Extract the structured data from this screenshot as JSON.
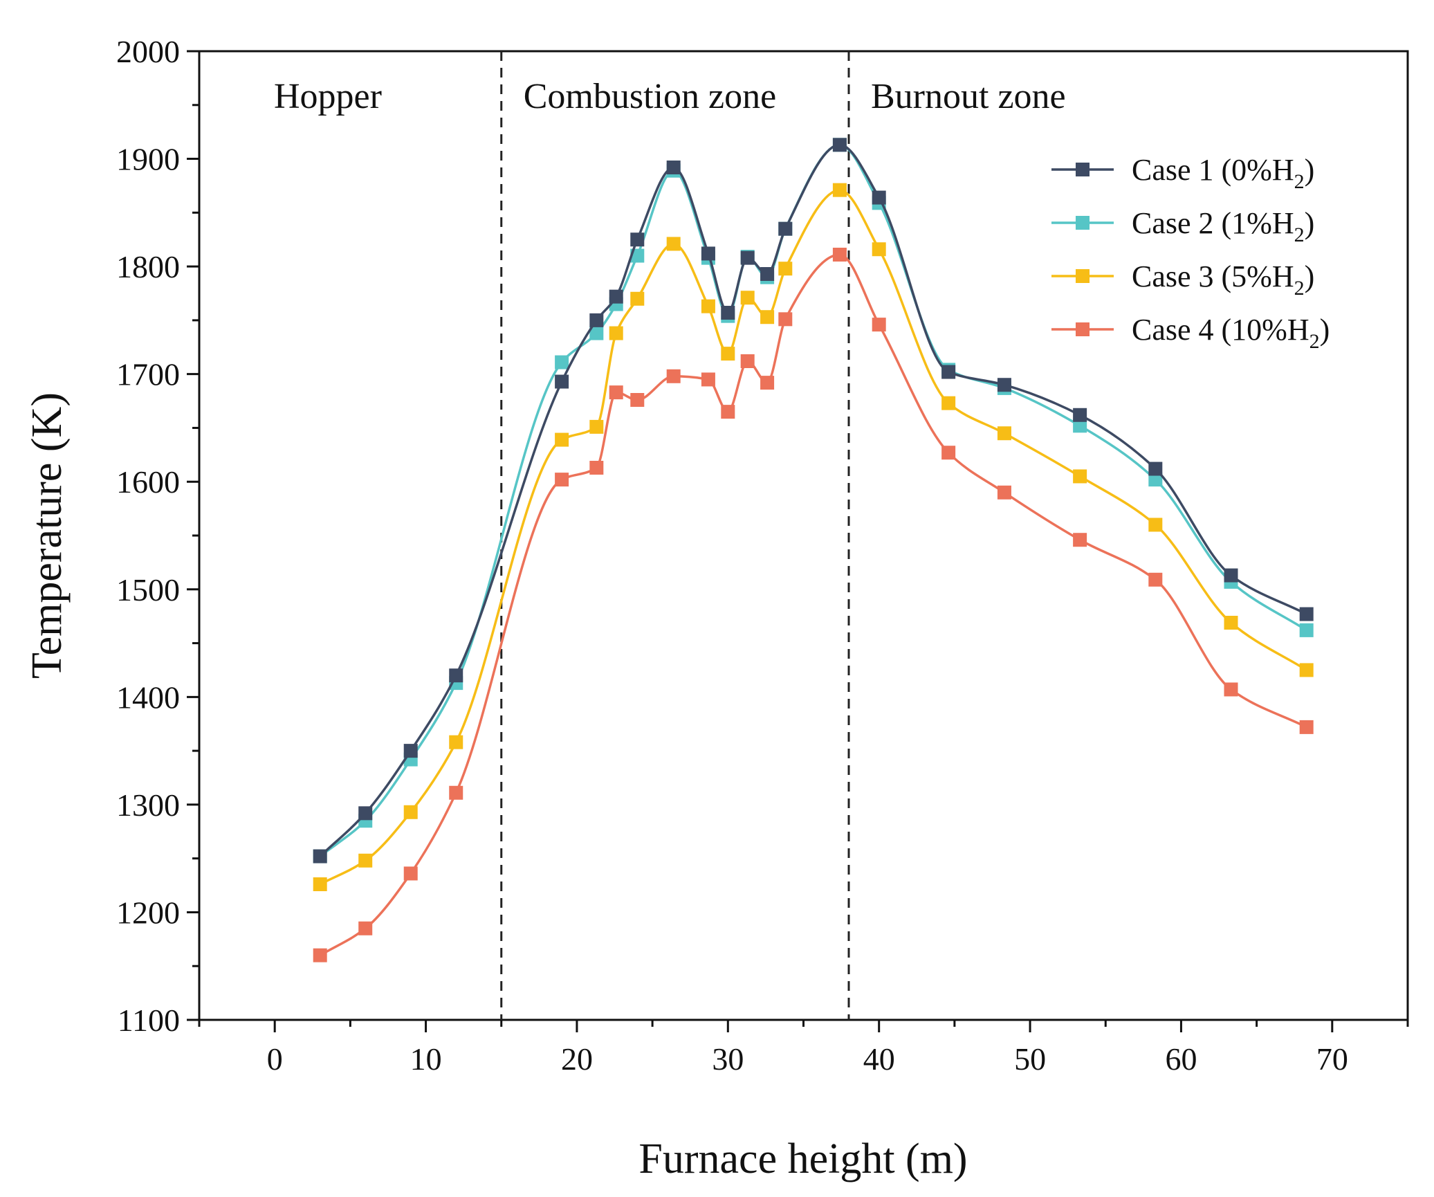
{
  "chart_data": {
    "type": "line",
    "title": "",
    "xlabel": "Furnace height (m)",
    "ylabel": "Temperature (K)",
    "xlim": [
      -5,
      75
    ],
    "ylim": [
      1100,
      2000
    ],
    "xticks": [
      0,
      10,
      20,
      30,
      40,
      50,
      60,
      70
    ],
    "yticks": [
      1100,
      1200,
      1300,
      1400,
      1500,
      1600,
      1700,
      1800,
      1900,
      2000
    ],
    "x": [
      3,
      6,
      9,
      12,
      19,
      21.3,
      22.6,
      24,
      26.4,
      28.7,
      30,
      31.3,
      32.6,
      33.8,
      37.4,
      40,
      44.6,
      48.3,
      53.3,
      58.3,
      63.3,
      68.3
    ],
    "series": [
      {
        "name": "Case 1 (0%H",
        "sub": "2",
        "suffix": ")",
        "color": "#3d4a63",
        "values": [
          1252,
          1292,
          1350,
          1420,
          1693,
          1750,
          1772,
          1825,
          1892,
          1812,
          1757,
          1808,
          1793,
          1835,
          1913,
          1864,
          1702,
          1690,
          1662,
          1612,
          1513,
          1477
        ]
      },
      {
        "name": "Case 2 (1%H",
        "sub": "2",
        "suffix": ")",
        "color": "#56c5c6",
        "values": [
          1252,
          1285,
          1342,
          1413,
          1711,
          1738,
          1765,
          1810,
          1889,
          1808,
          1754,
          1809,
          1790,
          1835,
          1913,
          1859,
          1704,
          1687,
          1652,
          1602,
          1507,
          1462
        ]
      },
      {
        "name": "Case 3 (5%H",
        "sub": "2",
        "suffix": ")",
        "color": "#f7bd16",
        "values": [
          1226,
          1248,
          1293,
          1358,
          1639,
          1651,
          1738,
          1770,
          1821,
          1763,
          1719,
          1771,
          1753,
          1798,
          1871,
          1816,
          1673,
          1645,
          1605,
          1560,
          1469,
          1425
        ]
      },
      {
        "name": "Case 4 (10%H",
        "sub": "2",
        "suffix": ")",
        "color": "#ec7259",
        "values": [
          1160,
          1185,
          1236,
          1311,
          1602,
          1613,
          1683,
          1676,
          1698,
          1695,
          1665,
          1712,
          1692,
          1751,
          1811,
          1746,
          1627,
          1590,
          1546,
          1509,
          1407,
          1372
        ]
      }
    ],
    "zones": [
      {
        "label": "Hopper",
        "x_start": -5,
        "x_end": 15
      },
      {
        "label": "Combustion zone",
        "x_start": 15,
        "x_end": 38
      },
      {
        "label": "Burnout zone",
        "x_start": 38,
        "x_end": 75
      }
    ],
    "dividers": [
      15,
      38
    ],
    "legend_position": "top-right",
    "grid": false
  }
}
